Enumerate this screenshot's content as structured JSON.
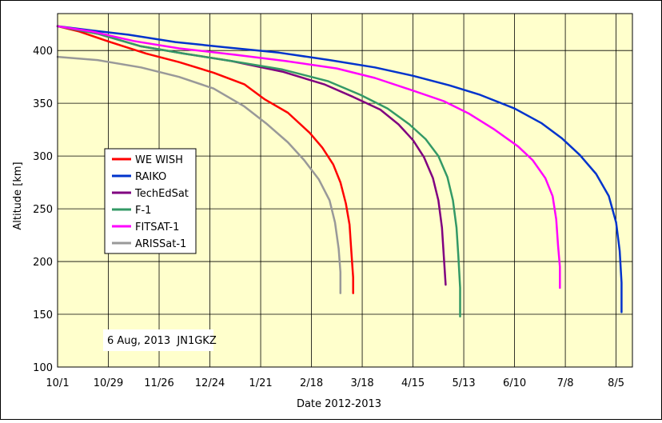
{
  "chart_data": {
    "type": "line",
    "title": "",
    "xlabel": "Date 2012-2013",
    "ylabel": "Altitude [km]",
    "x_tick_labels": [
      "10/1",
      "10/29",
      "11/26",
      "12/24",
      "1/21",
      "2/18",
      "3/18",
      "4/15",
      "5/13",
      "6/10",
      "7/8",
      "8/5"
    ],
    "x_tick_dates": [
      "2012-10-01",
      "2012-10-29",
      "2012-11-26",
      "2012-12-24",
      "2013-01-21",
      "2013-02-18",
      "2013-03-18",
      "2013-04-15",
      "2013-05-13",
      "2013-06-10",
      "2013-07-08",
      "2013-08-05"
    ],
    "xlim": [
      "2012-10-01",
      "2013-08-14"
    ],
    "ylim": [
      100,
      435
    ],
    "y_ticks": [
      100,
      150,
      200,
      250,
      300,
      350,
      400
    ],
    "grid": true,
    "plot_background": "#ffffcc",
    "legend_position": "left",
    "annotation": "6 Aug, 2013  JN1GKZ",
    "series": [
      {
        "name": "WE WISH",
        "color": "#ff0000",
        "points": [
          [
            "2012-10-01",
            423
          ],
          [
            "2012-10-13",
            418
          ],
          [
            "2012-10-30",
            408
          ],
          [
            "2012-11-19",
            397
          ],
          [
            "2012-12-07",
            389
          ],
          [
            "2012-12-26",
            379
          ],
          [
            "2013-01-12",
            368
          ],
          [
            "2013-01-23",
            354
          ],
          [
            "2013-02-05",
            341
          ],
          [
            "2013-02-17",
            322
          ],
          [
            "2013-02-24",
            308
          ],
          [
            "2013-03-02",
            292
          ],
          [
            "2013-03-06",
            275
          ],
          [
            "2013-03-09",
            255
          ],
          [
            "2013-03-11",
            235
          ],
          [
            "2013-03-12",
            210
          ],
          [
            "2013-03-13",
            185
          ],
          [
            "2013-03-13",
            170
          ]
        ]
      },
      {
        "name": "RAIKO",
        "color": "#0033cc",
        "points": [
          [
            "2012-10-01",
            423
          ],
          [
            "2012-10-20",
            419
          ],
          [
            "2012-11-09",
            415
          ],
          [
            "2012-12-05",
            408
          ],
          [
            "2013-01-02",
            403
          ],
          [
            "2013-01-31",
            398
          ],
          [
            "2013-02-28",
            391
          ],
          [
            "2013-03-25",
            384
          ],
          [
            "2013-04-15",
            376
          ],
          [
            "2013-05-05",
            367
          ],
          [
            "2013-05-22",
            358
          ],
          [
            "2013-06-10",
            345
          ],
          [
            "2013-06-25",
            331
          ],
          [
            "2013-07-06",
            317
          ],
          [
            "2013-07-16",
            301
          ],
          [
            "2013-07-25",
            283
          ],
          [
            "2013-08-01",
            262
          ],
          [
            "2013-08-05",
            237
          ],
          [
            "2013-08-07",
            210
          ],
          [
            "2013-08-08",
            180
          ],
          [
            "2013-08-08",
            152
          ]
        ]
      },
      {
        "name": "TechEdSat",
        "color": "#800080",
        "points": [
          [
            "2012-10-01",
            423
          ],
          [
            "2012-10-23",
            416
          ],
          [
            "2012-11-16",
            404
          ],
          [
            "2012-12-10",
            397
          ],
          [
            "2013-01-05",
            390
          ],
          [
            "2013-02-02",
            380
          ],
          [
            "2013-02-25",
            368
          ],
          [
            "2013-03-13",
            356
          ],
          [
            "2013-03-28",
            344
          ],
          [
            "2013-04-07",
            330
          ],
          [
            "2013-04-15",
            315
          ],
          [
            "2013-04-21",
            299
          ],
          [
            "2013-04-26",
            279
          ],
          [
            "2013-04-29",
            258
          ],
          [
            "2013-05-01",
            232
          ],
          [
            "2013-05-02",
            205
          ],
          [
            "2013-05-03",
            178
          ]
        ]
      },
      {
        "name": "F-1",
        "color": "#339966",
        "points": [
          [
            "2012-10-01",
            423
          ],
          [
            "2012-10-23",
            416
          ],
          [
            "2012-11-16",
            404
          ],
          [
            "2012-12-10",
            397
          ],
          [
            "2013-01-05",
            390
          ],
          [
            "2013-02-02",
            382
          ],
          [
            "2013-02-27",
            371
          ],
          [
            "2013-03-17",
            358
          ],
          [
            "2013-04-01",
            345
          ],
          [
            "2013-04-13",
            330
          ],
          [
            "2013-04-22",
            316
          ],
          [
            "2013-04-29",
            300
          ],
          [
            "2013-05-04",
            280
          ],
          [
            "2013-05-07",
            258
          ],
          [
            "2013-05-09",
            232
          ],
          [
            "2013-05-10",
            205
          ],
          [
            "2013-05-11",
            175
          ],
          [
            "2013-05-11",
            148
          ]
        ]
      },
      {
        "name": "FITSAT-1",
        "color": "#ff00ff",
        "points": [
          [
            "2012-10-01",
            423
          ],
          [
            "2012-10-20",
            418
          ],
          [
            "2012-11-12",
            409
          ],
          [
            "2012-12-07",
            402
          ],
          [
            "2013-01-07",
            396
          ],
          [
            "2013-02-04",
            390
          ],
          [
            "2013-03-04",
            383
          ],
          [
            "2013-03-25",
            374
          ],
          [
            "2013-04-15",
            362
          ],
          [
            "2013-05-02",
            352
          ],
          [
            "2013-05-16",
            340
          ],
          [
            "2013-05-30",
            325
          ],
          [
            "2013-06-12",
            309
          ],
          [
            "2013-06-20",
            296
          ],
          [
            "2013-06-27",
            279
          ],
          [
            "2013-07-01",
            262
          ],
          [
            "2013-07-03",
            240
          ],
          [
            "2013-07-04",
            215
          ],
          [
            "2013-07-05",
            195
          ],
          [
            "2013-07-05",
            175
          ]
        ]
      },
      {
        "name": "ARISSat-1",
        "color": "#999999",
        "points": [
          [
            "2012-10-01",
            394
          ],
          [
            "2012-10-23",
            391
          ],
          [
            "2012-11-16",
            384
          ],
          [
            "2012-12-07",
            375
          ],
          [
            "2012-12-26",
            364
          ],
          [
            "2013-01-12",
            347
          ],
          [
            "2013-01-24",
            331
          ],
          [
            "2013-02-05",
            313
          ],
          [
            "2013-02-14",
            296
          ],
          [
            "2013-02-22",
            278
          ],
          [
            "2013-02-28",
            258
          ],
          [
            "2013-03-03",
            237
          ],
          [
            "2013-03-05",
            212
          ],
          [
            "2013-03-06",
            190
          ],
          [
            "2013-03-06",
            170
          ]
        ]
      }
    ]
  }
}
